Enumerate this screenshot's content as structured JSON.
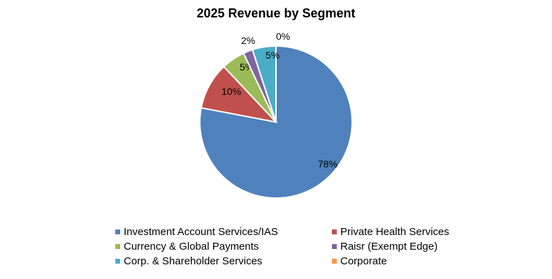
{
  "chart_data": {
    "type": "pie",
    "title": "2025 Revenue by Segment",
    "categories": [
      "Investment Account Services/IAS",
      "Private Health Services",
      "Currency & Global Payments",
      "Raisr (Exempt Edge)",
      "Corp. & Shareholder Services",
      "Corporate"
    ],
    "values": [
      78,
      10,
      5,
      2,
      5,
      0
    ],
    "labels": [
      "78%",
      "10%",
      "5%",
      "2%",
      "5%",
      "0%"
    ],
    "colors": [
      "#4F81BD",
      "#C0504D",
      "#9BBB59",
      "#8064A2",
      "#4BACC6",
      "#F79646"
    ],
    "legend_position": "bottom"
  }
}
